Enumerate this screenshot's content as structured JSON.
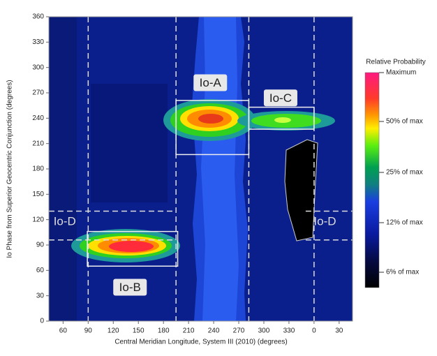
{
  "chart_data": {
    "type": "heatmap",
    "xlabel": "Central Meridian Longitude, System III (2010) (degrees)",
    "ylabel": "Io Phase from Superior Geocentric Conjunction (degrees)",
    "xlim": [
      43,
      406
    ],
    "xticks": [
      60,
      90,
      120,
      150,
      180,
      210,
      240,
      270,
      300,
      330,
      {
        "value": 360,
        "label": "0"
      },
      {
        "value": 390,
        "label": "30"
      }
    ],
    "ylim": [
      0,
      360
    ],
    "yticks": [
      0,
      30,
      60,
      90,
      120,
      150,
      180,
      210,
      240,
      270,
      300,
      330,
      360
    ],
    "vlines": [
      90,
      195,
      282,
      360
    ],
    "hlines": [
      96,
      130
    ],
    "boxes": [
      {
        "x": [
          195,
          282
        ],
        "y": [
          197,
          261
        ]
      },
      {
        "x": [
          89,
          197
        ],
        "y": [
          65,
          106
        ]
      },
      {
        "x": [
          282,
          360
        ],
        "y": [
          227,
          253
        ]
      }
    ],
    "annotations": [
      {
        "text": "Io-A",
        "x": 236,
        "y": 282
      },
      {
        "text": "Io-B",
        "x": 140,
        "y": 40
      },
      {
        "text": "Io-C",
        "x": 320,
        "y": 264
      },
      {
        "text": "Io-D",
        "x": 62,
        "y": 118
      },
      {
        "text": "Io-D",
        "x": 373,
        "y": 118
      }
    ],
    "colorbar": {
      "title": "Relative Probability",
      "labels": [
        "Maximum",
        "50% of max",
        "25% of max",
        "12% of max",
        "6% of max"
      ]
    }
  }
}
